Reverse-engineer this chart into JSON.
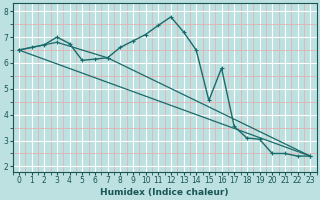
{
  "xlabel": "Humidex (Indice chaleur)",
  "background_color": "#bde0e0",
  "grid_major_color": "#ffffff",
  "grid_minor_color": "#e8aaaa",
  "line_color": "#1a6b6b",
  "xlim": [
    -0.5,
    23.5
  ],
  "ylim": [
    1.8,
    8.3
  ],
  "xticks": [
    0,
    1,
    2,
    3,
    4,
    5,
    6,
    7,
    8,
    9,
    10,
    11,
    12,
    13,
    14,
    15,
    16,
    17,
    18,
    19,
    20,
    21,
    22,
    23
  ],
  "yticks": [
    2,
    3,
    4,
    5,
    6,
    7,
    8
  ],
  "series1_x": [
    0,
    1,
    2,
    3,
    4,
    5,
    6,
    7,
    8,
    9,
    10,
    11,
    12,
    13,
    14,
    15,
    16,
    17,
    18,
    19,
    20,
    21,
    22,
    23
  ],
  "series1_y": [
    6.5,
    6.6,
    6.7,
    7.0,
    6.75,
    6.1,
    6.15,
    6.2,
    6.6,
    6.85,
    7.1,
    7.45,
    7.78,
    7.2,
    6.5,
    4.55,
    5.8,
    3.55,
    3.1,
    3.05,
    2.5,
    2.5,
    2.4,
    2.4
  ],
  "series2_x": [
    0,
    3,
    7,
    23
  ],
  "series2_y": [
    6.5,
    6.8,
    6.2,
    2.4
  ],
  "series3_x": [
    0,
    23
  ],
  "series3_y": [
    6.5,
    2.4
  ],
  "xlabel_fontsize": 6.5,
  "tick_fontsize": 5.5
}
